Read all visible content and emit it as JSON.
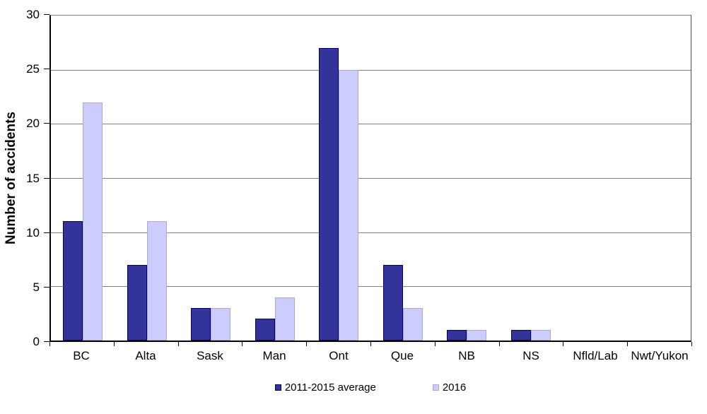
{
  "chart_data": {
    "type": "bar",
    "title": "",
    "ylabel": "Number of accidents",
    "xlabel": "",
    "ylim": [
      0,
      30
    ],
    "yticks": [
      0,
      5,
      10,
      15,
      20,
      25,
      30
    ],
    "grid": true,
    "legend_position": "bottom",
    "categories": [
      "BC",
      "Alta",
      "Sask",
      "Man",
      "Ont",
      "Que",
      "NB",
      "NS",
      "Nfld/Lab",
      "Nwt/Yukon"
    ],
    "series": [
      {
        "name": "2011-2015 average",
        "values": [
          11,
          7,
          3,
          2,
          27,
          7,
          1,
          1,
          0,
          0
        ],
        "fill": "#333399",
        "border": "#000066"
      },
      {
        "name": "2016",
        "values": [
          22,
          11,
          3,
          4,
          25,
          3,
          1,
          1,
          0,
          0
        ],
        "fill": "#ccccff",
        "border": "#a9a9c9"
      }
    ]
  },
  "colors": {
    "background": "#ffffff",
    "gridline": "#808080",
    "axis": "#000000",
    "text": "#000000"
  }
}
